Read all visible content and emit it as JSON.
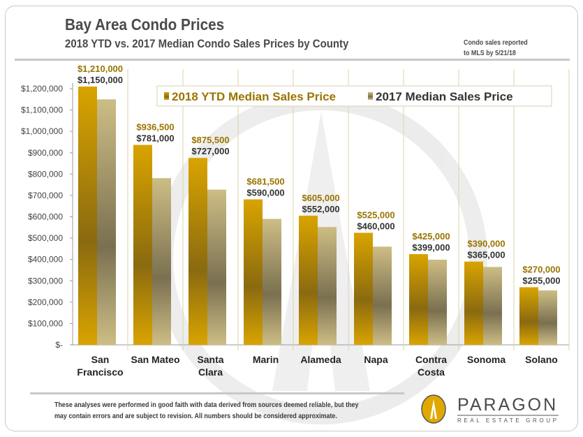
{
  "header": {
    "title": "Bay Area Condo Prices",
    "subtitle": "2018 YTD vs. 2017 Median Condo Sales Prices by County",
    "note_line1": "Condo sales reported",
    "note_line2": "to MLS by 5/21/18"
  },
  "footer": {
    "disclaimer_line1": "These analyses were performed  in good faith with data derived from sources deemed reliable, but they",
    "disclaimer_line2": "may contain errors  and are subject to revision.  All numbers should be considered  approximate.",
    "brand": "PARAGON",
    "brand_sub": "REAL ESTATE GROUP"
  },
  "colors": {
    "series_2018": "#d4a20a",
    "series_2017": "#c5b57a",
    "label_2018": "#9a7400",
    "label_2017": "#333333"
  },
  "chart_data": {
    "type": "bar",
    "title": "Bay Area Condo Prices",
    "categories": [
      [
        "San",
        "Francisco"
      ],
      [
        "San Mateo"
      ],
      [
        "Santa",
        "Clara"
      ],
      [
        "Marin"
      ],
      [
        "Alameda"
      ],
      [
        "Napa"
      ],
      [
        "Contra",
        "Costa"
      ],
      [
        "Sonoma"
      ],
      [
        "Solano"
      ]
    ],
    "series": [
      {
        "name": "2018 YTD Median Sales Price",
        "values": [
          1210000,
          936500,
          875500,
          681500,
          605000,
          525000,
          425000,
          390000,
          270000
        ],
        "labels": [
          "$1,210,000",
          "$936,500",
          "$875,500",
          "$681,500",
          "$605,000",
          "$525,000",
          "$425,000",
          "$390,000",
          "$270,000"
        ]
      },
      {
        "name": "2017 Median Sales Price",
        "values": [
          1150000,
          781000,
          727000,
          590000,
          552000,
          460000,
          399000,
          365000,
          255000
        ],
        "labels": [
          "$1,150,000",
          "$781,000",
          "$727,000",
          "$590,000",
          "$552,000",
          "$460,000",
          "$399,000",
          "$365,000",
          "$255,000"
        ]
      }
    ],
    "yticks": [
      0,
      100000,
      200000,
      300000,
      400000,
      500000,
      600000,
      700000,
      800000,
      900000,
      1000000,
      1100000,
      1200000
    ],
    "ytick_labels": [
      "$-",
      "$100,000",
      "$200,000",
      "$300,000",
      "$400,000",
      "$500,000",
      "$600,000",
      "$700,000",
      "$800,000",
      "$900,000",
      "$1,000,000",
      "$1,100,000",
      "$1,200,000"
    ],
    "ylim": [
      0,
      1200000
    ],
    "legend": "top-right",
    "grid": "vertical category separators"
  }
}
